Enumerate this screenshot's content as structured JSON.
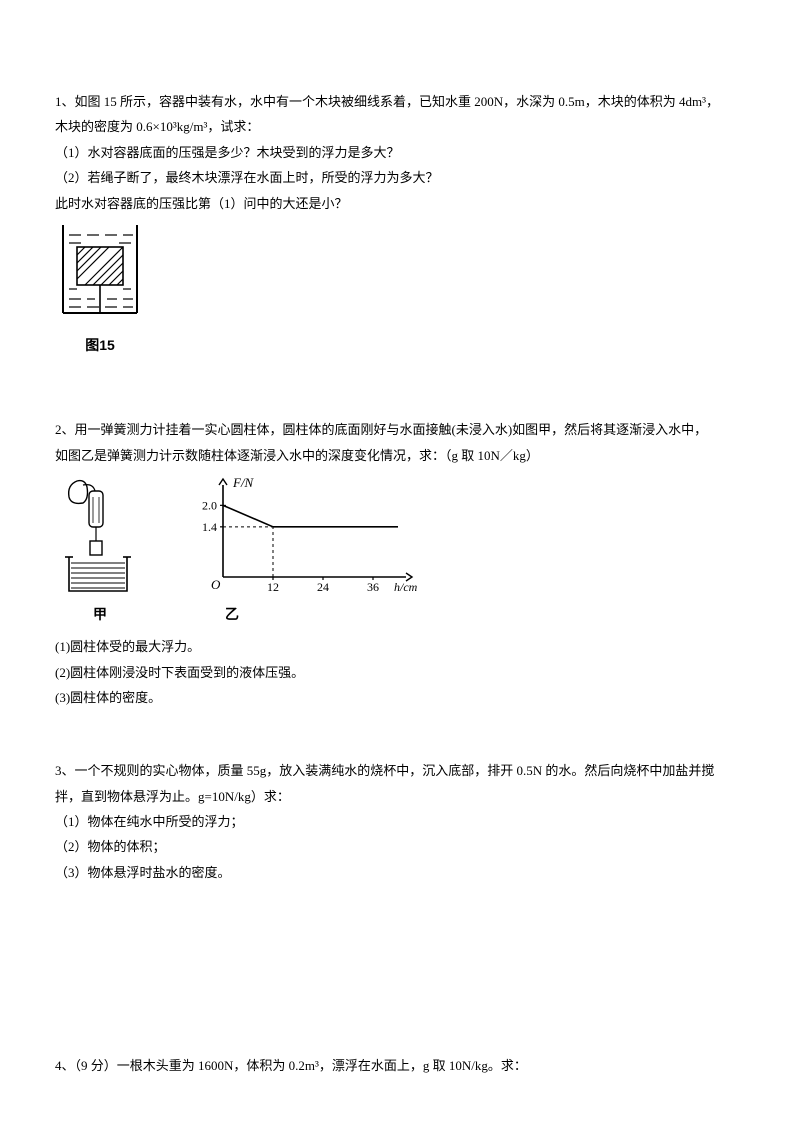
{
  "q1": {
    "line1": "1、如图 15 所示，容器中装有水，水中有一个木块被细线系着，已知水重 200N，水深为 0.5m，木块的体积为 4dm³，",
    "line2": "木块的密度为 0.6×10³kg/m³，试求：",
    "sub1": "（1）水对容器底面的压强是多少？木块受到的浮力是多大？",
    "sub2": "（2）若绳子断了，最终木块漂浮在水面上时，所受的浮力为多大？",
    "sub3": "此时水对容器底的压强比第（1）问中的大还是小？",
    "fig_caption": "图15",
    "fig": {
      "stroke": "#000000",
      "hatch": "#000000",
      "bg": "#ffffff"
    }
  },
  "q2": {
    "line1": "2、用一弹簧测力计挂着一实心圆柱体，圆柱体的底面刚好与水面接触(未浸入水)如图甲，然后将其逐渐浸入水中，",
    "line2": "如图乙是弹簧测力计示数随柱体逐渐浸入水中的深度变化情况，求：（g 取 10N／kg）",
    "sub1": "(1)圆柱体受的最大浮力。",
    "sub2": "(2)圆柱体刚浸没时下表面受到的液体压强。",
    "sub3": "(3)圆柱体的密度。",
    "cap_left": "甲",
    "cap_right": "乙",
    "graph": {
      "y_label": "F/N",
      "x_label": "h/cm",
      "y_ticks": [
        "1.4",
        "2.0"
      ],
      "y_tick_vals": [
        1.4,
        2.0
      ],
      "x_ticks": [
        "12",
        "24",
        "36"
      ],
      "x_tick_vals": [
        12,
        24,
        36
      ],
      "y_max": 2.4,
      "x_max": 42,
      "series": [
        {
          "x": 0,
          "y": 2.0
        },
        {
          "x": 12,
          "y": 1.4
        },
        {
          "x": 42,
          "y": 1.4
        }
      ],
      "stroke": "#000000",
      "bg": "#ffffff",
      "line_width": 1.6
    }
  },
  "q3": {
    "line1": "3、一个不规则的实心物体，质量 55g，放入装满纯水的烧杯中，沉入底部，排开 0.5N 的水。然后向烧杯中加盐并搅",
    "line2": "拌，直到物体悬浮为止。g=10N/kg）求：",
    "sub1": "（1）物体在纯水中所受的浮力；",
    "sub2": "（2）物体的体积；",
    "sub3": "（3）物体悬浮时盐水的密度。"
  },
  "q4": {
    "line1": "4、（9 分）一根木头重为 1600N，体积为 0.2m³，漂浮在水面上，g 取 10N/kg。求："
  }
}
